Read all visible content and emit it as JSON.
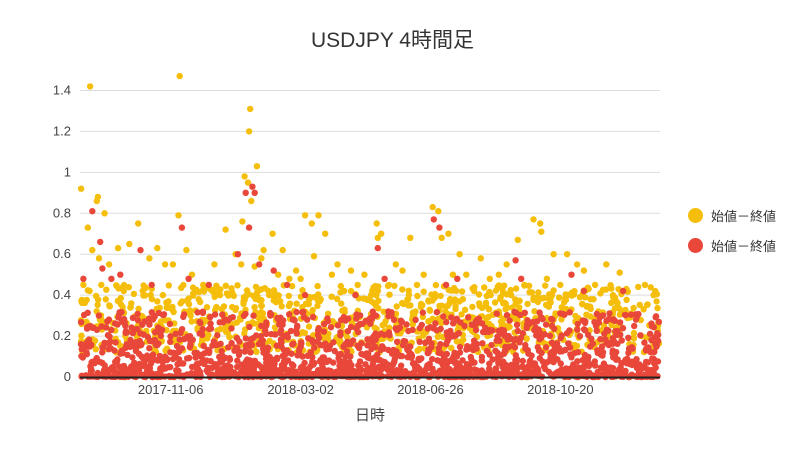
{
  "chart_data": {
    "type": "scatter",
    "title": "USDJPY 4時間足",
    "xlabel": "日時",
    "ylabel": "",
    "ylim": [
      0,
      1.5
    ],
    "yticks": [
      "0",
      "0.2",
      "0.4",
      "0.6",
      "0.8",
      "1",
      "1.2",
      "1.4"
    ],
    "xlim": [
      "2017-08-17",
      "2019-01-17"
    ],
    "xticks": [
      {
        "label": "2017-11-06",
        "date": "2017-11-06"
      },
      {
        "label": "2018-03-02",
        "date": "2018-03-02"
      },
      {
        "label": "2018-06-26",
        "date": "2018-06-26"
      },
      {
        "label": "2018-10-20",
        "date": "2018-10-20"
      }
    ],
    "grid": true,
    "legend_position": "right",
    "series": [
      {
        "name": "始値－終値",
        "color": "#f5be0b",
        "points": [
          [
            "2017-08-18",
            0.92
          ],
          [
            "2017-08-20",
            0.45
          ],
          [
            "2017-08-24",
            0.73
          ],
          [
            "2017-08-26",
            1.42
          ],
          [
            "2017-08-28",
            0.62
          ],
          [
            "2017-09-01",
            0.86
          ],
          [
            "2017-09-02",
            0.88
          ],
          [
            "2017-09-08",
            0.8
          ],
          [
            "2017-09-03",
            0.58
          ],
          [
            "2017-09-12",
            0.55
          ],
          [
            "2017-09-20",
            0.63
          ],
          [
            "2017-09-30",
            0.65
          ],
          [
            "2017-10-08",
            0.75
          ],
          [
            "2017-10-18",
            0.58
          ],
          [
            "2017-10-25",
            0.63
          ],
          [
            "2017-11-01",
            0.55
          ],
          [
            "2017-11-08",
            0.55
          ],
          [
            "2017-11-13",
            0.79
          ],
          [
            "2017-11-14",
            1.47
          ],
          [
            "2017-11-20",
            0.62
          ],
          [
            "2017-11-25",
            0.5
          ],
          [
            "2017-12-05",
            0.45
          ],
          [
            "2017-12-15",
            0.55
          ],
          [
            "2017-12-25",
            0.72
          ],
          [
            "2018-01-03",
            0.6
          ],
          [
            "2018-01-08",
            0.55
          ],
          [
            "2018-01-11",
            0.98
          ],
          [
            "2018-01-14",
            0.95
          ],
          [
            "2018-01-17",
            0.86
          ],
          [
            "2018-01-09",
            0.76
          ],
          [
            "2018-01-20",
            0.54
          ],
          [
            "2018-01-26",
            0.58
          ],
          [
            "2018-01-16",
            1.31
          ],
          [
            "2018-01-15",
            1.2
          ],
          [
            "2018-01-22",
            1.03
          ],
          [
            "2018-01-28",
            0.62
          ],
          [
            "2018-02-05",
            0.7
          ],
          [
            "2018-02-10",
            0.5
          ],
          [
            "2018-02-14",
            0.62
          ],
          [
            "2018-02-20",
            0.48
          ],
          [
            "2018-02-26",
            0.52
          ],
          [
            "2018-03-02",
            0.48
          ],
          [
            "2018-03-06",
            0.79
          ],
          [
            "2018-03-12",
            0.75
          ],
          [
            "2018-03-14",
            0.59
          ],
          [
            "2018-03-18",
            0.79
          ],
          [
            "2018-03-24",
            0.7
          ],
          [
            "2018-03-30",
            0.5
          ],
          [
            "2018-04-04",
            0.55
          ],
          [
            "2018-04-10",
            0.42
          ],
          [
            "2018-04-16",
            0.52
          ],
          [
            "2018-04-22",
            0.45
          ],
          [
            "2018-04-28",
            0.5
          ],
          [
            "2018-05-04",
            0.4
          ],
          [
            "2018-05-09",
            0.75
          ],
          [
            "2018-05-10",
            0.68
          ],
          [
            "2018-05-13",
            0.7
          ],
          [
            "2018-05-20",
            0.45
          ],
          [
            "2018-05-26",
            0.55
          ],
          [
            "2018-06-01",
            0.52
          ],
          [
            "2018-06-08",
            0.68
          ],
          [
            "2018-06-14",
            0.45
          ],
          [
            "2018-06-20",
            0.5
          ],
          [
            "2018-06-28",
            0.83
          ],
          [
            "2018-07-03",
            0.81
          ],
          [
            "2018-07-06",
            0.68
          ],
          [
            "2018-07-12",
            0.7
          ],
          [
            "2018-07-16",
            0.5
          ],
          [
            "2018-07-22",
            0.6
          ],
          [
            "2018-07-28",
            0.5
          ],
          [
            "2018-08-04",
            0.42
          ],
          [
            "2018-08-10",
            0.58
          ],
          [
            "2018-08-18",
            0.48
          ],
          [
            "2018-08-26",
            0.5
          ],
          [
            "2018-09-02",
            0.55
          ],
          [
            "2018-09-06",
            0.4
          ],
          [
            "2018-09-12",
            0.67
          ],
          [
            "2018-09-18",
            0.45
          ],
          [
            "2018-09-26",
            0.77
          ],
          [
            "2018-10-02",
            0.75
          ],
          [
            "2018-10-03",
            0.71
          ],
          [
            "2018-10-08",
            0.48
          ],
          [
            "2018-10-14",
            0.6
          ],
          [
            "2018-10-20",
            0.45
          ],
          [
            "2018-10-26",
            0.6
          ],
          [
            "2018-11-04",
            0.55
          ],
          [
            "2018-11-10",
            0.52
          ],
          [
            "2018-11-20",
            0.45
          ],
          [
            "2018-11-30",
            0.55
          ],
          [
            "2018-12-06",
            0.4
          ],
          [
            "2018-12-12",
            0.51
          ],
          [
            "2018-12-18",
            0.43
          ],
          [
            "2017-09-05",
            0.45
          ],
          [
            "2017-09-25",
            0.42
          ],
          [
            "2017-10-12",
            0.42
          ],
          [
            "2017-10-30",
            0.4
          ],
          [
            "2017-12-01",
            0.38
          ],
          [
            "2017-12-20",
            0.4
          ],
          [
            "2018-02-02",
            0.4
          ],
          [
            "2018-03-20",
            0.38
          ],
          [
            "2018-04-30",
            0.38
          ],
          [
            "2018-06-06",
            0.38
          ],
          [
            "2018-07-25",
            0.38
          ],
          [
            "2018-08-30",
            0.36
          ],
          [
            "2018-10-10",
            0.38
          ],
          [
            "2018-11-16",
            0.38
          ],
          [
            "2018-12-10",
            0.36
          ]
        ]
      },
      {
        "name": "始値－終値",
        "color": "#e8473a",
        "points": [
          [
            "2017-08-20",
            0.48
          ],
          [
            "2017-08-28",
            0.81
          ],
          [
            "2017-09-04",
            0.66
          ],
          [
            "2017-09-06",
            0.53
          ],
          [
            "2017-09-14",
            0.48
          ],
          [
            "2017-09-22",
            0.5
          ],
          [
            "2017-10-10",
            0.62
          ],
          [
            "2017-10-20",
            0.45
          ],
          [
            "2017-11-16",
            0.73
          ],
          [
            "2017-11-22",
            0.48
          ],
          [
            "2017-12-10",
            0.45
          ],
          [
            "2018-01-05",
            0.6
          ],
          [
            "2018-01-12",
            0.9
          ],
          [
            "2018-01-15",
            0.73
          ],
          [
            "2018-01-18",
            0.93
          ],
          [
            "2018-01-20",
            0.9
          ],
          [
            "2018-01-24",
            0.55
          ],
          [
            "2018-02-06",
            0.52
          ],
          [
            "2018-02-18",
            0.45
          ],
          [
            "2018-03-06",
            0.4
          ],
          [
            "2018-04-20",
            0.4
          ],
          [
            "2018-05-10",
            0.63
          ],
          [
            "2018-05-16",
            0.48
          ],
          [
            "2018-06-29",
            0.77
          ],
          [
            "2018-07-04",
            0.73
          ],
          [
            "2018-07-10",
            0.45
          ],
          [
            "2018-07-20",
            0.48
          ],
          [
            "2018-09-10",
            0.57
          ],
          [
            "2018-09-15",
            0.48
          ],
          [
            "2018-10-30",
            0.5
          ],
          [
            "2018-11-10",
            0.42
          ],
          [
            "2018-12-15",
            0.42
          ]
        ]
      }
    ],
    "dense_bands": [
      {
        "series_index": 0,
        "min": 0.12,
        "max": 0.45,
        "count": 900
      },
      {
        "series_index": 1,
        "min": 0.0,
        "max": 0.32,
        "count": 1600
      }
    ]
  }
}
